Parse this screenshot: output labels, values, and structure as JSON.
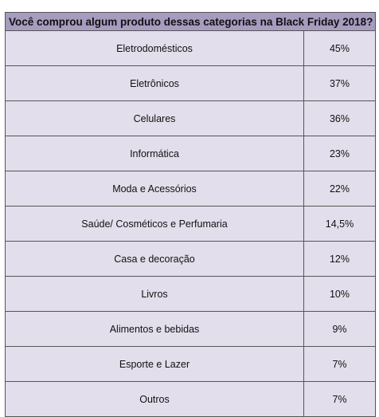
{
  "chart_data": {
    "type": "table",
    "title": "Você comprou algum produto dessas categorias na Black Friday 2018?",
    "rows": [
      {
        "category": "Eletrodomésticos",
        "value": "45%"
      },
      {
        "category": "Eletrônicos",
        "value": "37%"
      },
      {
        "category": "Celulares",
        "value": "36%"
      },
      {
        "category": "Informática",
        "value": "23%"
      },
      {
        "category": "Moda e Acessórios",
        "value": "22%"
      },
      {
        "category": "Saúde/ Cosméticos e Perfumaria",
        "value": "14,5%"
      },
      {
        "category": "Casa e decoração",
        "value": "12%"
      },
      {
        "category": "Livros",
        "value": "10%"
      },
      {
        "category": "Alimentos e bebidas",
        "value": "9%"
      },
      {
        "category": "Esporte e Lazer",
        "value": "7%"
      },
      {
        "category": "Outros",
        "value": "7%"
      }
    ],
    "header_color": "#a79bc0",
    "row_color": "#e3deeb"
  }
}
